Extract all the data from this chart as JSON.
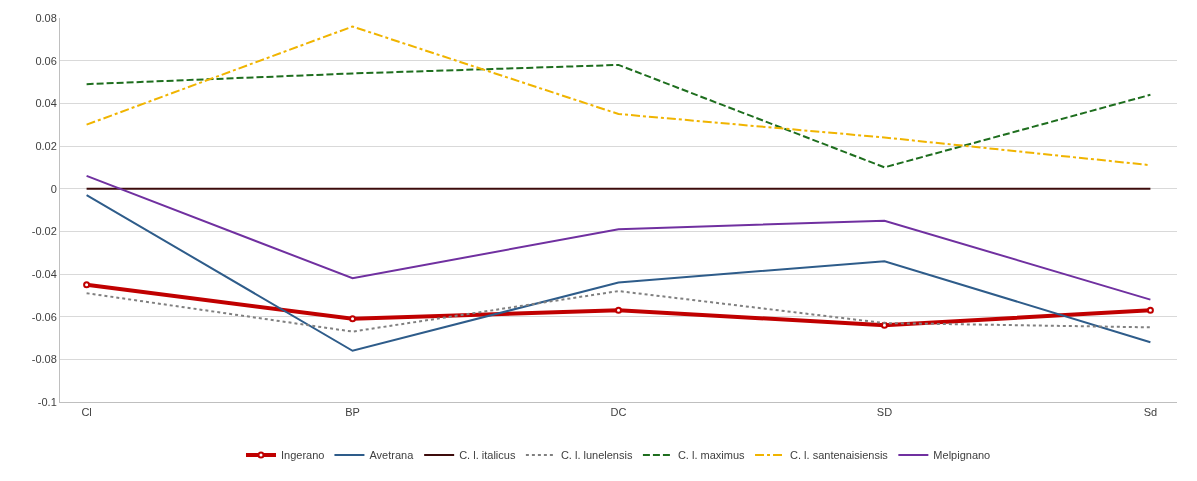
{
  "chart_data": {
    "type": "line",
    "categories": [
      "Cl",
      "BP",
      "DC",
      "SD",
      "Sd"
    ],
    "series": [
      {
        "name": "Ingerano",
        "color": "#c00000",
        "values": [
          -0.045,
          -0.061,
          -0.057,
          -0.064,
          -0.057
        ],
        "marker": "circle"
      },
      {
        "name": "Avetrana",
        "color": "#2e5c8a",
        "values": [
          -0.003,
          -0.076,
          -0.044,
          -0.034,
          -0.072
        ]
      },
      {
        "name": "C. l. italicus",
        "color": "#3d0c0c",
        "values": [
          0,
          0,
          0,
          0,
          0
        ]
      },
      {
        "name": "C. l. lunelensis",
        "color": "#808080",
        "values": [
          -0.049,
          -0.067,
          -0.048,
          -0.063,
          -0.065
        ],
        "line_style": "dotted"
      },
      {
        "name": "C. l. maximus",
        "color": "#1e6e1e",
        "values": [
          0.049,
          0.054,
          0.058,
          0.01,
          0.044
        ],
        "line_style": "dashed"
      },
      {
        "name": "C. l. santenaisiensis",
        "color": "#f0b400",
        "values": [
          0.03,
          0.076,
          0.035,
          0.024,
          0.011
        ],
        "line_style": "dashdot"
      },
      {
        "name": "Melpignano",
        "color": "#7030a0",
        "values": [
          0.006,
          -0.042,
          -0.019,
          -0.015,
          -0.052
        ]
      }
    ],
    "ylim": [
      -0.1,
      0.08
    ],
    "yticks": [
      {
        "value": 0.08,
        "label": "0.08"
      },
      {
        "value": 0.06,
        "label": "0.06"
      },
      {
        "value": 0.04,
        "label": "0.04"
      },
      {
        "value": 0.02,
        "label": "0.02"
      },
      0,
      {
        "value": -0.02,
        "label": "-0.02"
      },
      {
        "value": -0.04,
        "label": "-0.04"
      },
      {
        "value": -0.06,
        "label": "-0.06"
      },
      {
        "value": -0.08,
        "label": "-0.08"
      },
      {
        "value": -0.1,
        "label": "-0.1"
      }
    ],
    "grid": "y",
    "legend": "bottom"
  }
}
